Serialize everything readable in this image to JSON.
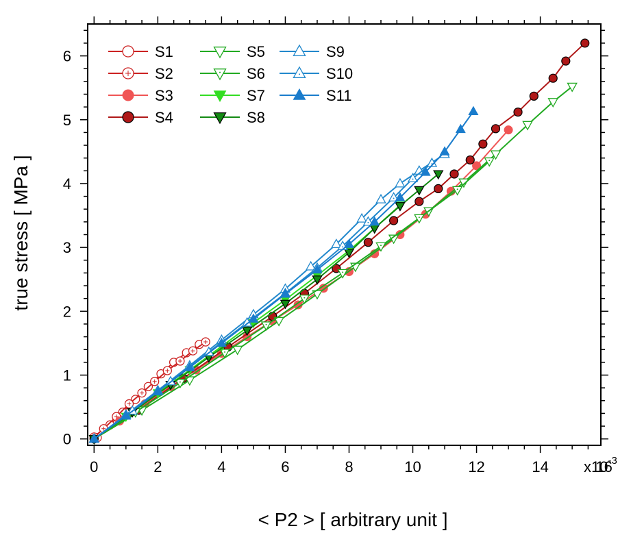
{
  "chart_data": {
    "type": "scatter",
    "title": "",
    "xlabel": "< P2 >   [ arbitrary unit ]",
    "ylabel": "true stress  [ MPa ]",
    "x_multiplier_label": "x10",
    "x_multiplier_exponent": "-3",
    "xlim": [
      -0.0002,
      0.0159
    ],
    "ylim": [
      -0.1,
      6.5
    ],
    "x_ticks": [
      0,
      0.002,
      0.004,
      0.006,
      0.008,
      0.01,
      0.012,
      0.014,
      0.016
    ],
    "x_tick_labels": [
      "0",
      "2",
      "4",
      "6",
      "8",
      "10",
      "12",
      "14",
      "16"
    ],
    "y_ticks": [
      0,
      1,
      2,
      3,
      4,
      5,
      6
    ],
    "y_tick_labels": [
      "0",
      "1",
      "2",
      "3",
      "4",
      "5",
      "6"
    ],
    "grid": false,
    "legend_position": "top-left",
    "series": [
      {
        "name": "S1",
        "color": "#cc2222",
        "marker": "circle-open",
        "x": [
          0.0001,
          0.0005,
          0.0009,
          0.0013,
          0.0017,
          0.0021,
          0.0025,
          0.0029,
          0.0033
        ],
        "y": [
          0.02,
          0.22,
          0.42,
          0.62,
          0.82,
          1.02,
          1.2,
          1.35,
          1.48
        ]
      },
      {
        "name": "S2",
        "color": "#cc2222",
        "marker": "circle-plus",
        "x": [
          0.0,
          0.0003,
          0.0007,
          0.0011,
          0.0015,
          0.0019,
          0.0023,
          0.0027,
          0.0031,
          0.0035
        ],
        "y": [
          0.03,
          0.16,
          0.35,
          0.55,
          0.72,
          0.9,
          1.07,
          1.22,
          1.38,
          1.52
        ]
      },
      {
        "name": "S3",
        "color": "#f05555",
        "marker": "circle-filled",
        "x": [
          0.0,
          0.0008,
          0.0016,
          0.0024,
          0.0032,
          0.004,
          0.0048,
          0.0056,
          0.0064,
          0.0072,
          0.008,
          0.0088,
          0.0096,
          0.0104,
          0.0112,
          0.012,
          0.013
        ],
        "y": [
          0.0,
          0.28,
          0.55,
          0.82,
          1.08,
          1.34,
          1.6,
          1.85,
          2.1,
          2.36,
          2.62,
          2.9,
          3.2,
          3.52,
          3.88,
          4.28,
          4.84
        ]
      },
      {
        "name": "S4",
        "color": "#b01818",
        "marker": "circle-filled-edged",
        "x": [
          0.0,
          0.0014,
          0.0028,
          0.0042,
          0.0056,
          0.0066,
          0.0076,
          0.0086,
          0.0094,
          0.0102,
          0.0108,
          0.0113,
          0.0118,
          0.0122,
          0.0126,
          0.0133,
          0.0138,
          0.0144,
          0.0148,
          0.0154
        ],
        "y": [
          0.0,
          0.45,
          0.95,
          1.44,
          1.92,
          2.28,
          2.67,
          3.08,
          3.42,
          3.72,
          3.92,
          4.15,
          4.37,
          4.62,
          4.86,
          5.12,
          5.37,
          5.65,
          5.92,
          6.2
        ]
      },
      {
        "name": "S5",
        "color": "#22aa22",
        "marker": "triangle-down-open",
        "x": [
          0.0,
          0.0015,
          0.003,
          0.0045,
          0.0058,
          0.007,
          0.0082,
          0.0094,
          0.0105,
          0.0116,
          0.0126,
          0.0136,
          0.0144,
          0.015
        ],
        "y": [
          0.0,
          0.45,
          0.92,
          1.4,
          1.85,
          2.27,
          2.7,
          3.14,
          3.57,
          4.02,
          4.46,
          4.92,
          5.28,
          5.52
        ]
      },
      {
        "name": "S6",
        "color": "#22aa22",
        "marker": "triangle-down-dot",
        "x": [
          0.0,
          0.0013,
          0.0027,
          0.0041,
          0.0054,
          0.0066,
          0.0078,
          0.009,
          0.0102,
          0.0114,
          0.0124
        ],
        "y": [
          0.0,
          0.42,
          0.88,
          1.35,
          1.78,
          2.2,
          2.6,
          3.02,
          3.46,
          3.9,
          4.35
        ]
      },
      {
        "name": "S7",
        "color": "#33dd22",
        "marker": "triangle-down-filled",
        "x": [
          0.0,
          0.001,
          0.002,
          0.003,
          0.004,
          0.005,
          0.006,
          0.007,
          0.008,
          0.0088,
          0.0096
        ],
        "y": [
          0.0,
          0.35,
          0.72,
          1.08,
          1.45,
          1.82,
          2.18,
          2.56,
          2.95,
          3.3,
          3.66
        ]
      },
      {
        "name": "S8",
        "color": "#138a13",
        "marker": "triangle-down-filled-edged",
        "x": [
          0.0,
          0.0012,
          0.0024,
          0.0036,
          0.0048,
          0.006,
          0.007,
          0.008,
          0.0088,
          0.0096,
          0.0102,
          0.0108
        ],
        "y": [
          0.0,
          0.42,
          0.85,
          1.28,
          1.7,
          2.12,
          2.5,
          2.92,
          3.3,
          3.65,
          3.9,
          4.15
        ]
      },
      {
        "name": "S9",
        "color": "#2288cc",
        "marker": "triangle-up-open",
        "x": [
          0.0,
          0.001,
          0.002,
          0.003,
          0.004,
          0.005,
          0.006,
          0.0068,
          0.0076,
          0.0084,
          0.009,
          0.0096,
          0.0102,
          0.011
        ],
        "y": [
          0.0,
          0.38,
          0.76,
          1.15,
          1.55,
          1.95,
          2.35,
          2.7,
          3.05,
          3.45,
          3.75,
          4.0,
          4.2,
          4.46
        ]
      },
      {
        "name": "S10",
        "color": "#2288cc",
        "marker": "triangle-up-dot",
        "x": [
          0.0,
          0.0012,
          0.0024,
          0.0036,
          0.0048,
          0.006,
          0.007,
          0.0078,
          0.0086,
          0.0094,
          0.01,
          0.0106
        ],
        "y": [
          0.0,
          0.44,
          0.9,
          1.36,
          1.82,
          2.28,
          2.68,
          3.02,
          3.4,
          3.78,
          4.08,
          4.32
        ]
      },
      {
        "name": "S11",
        "color": "#1a7ccc",
        "marker": "triangle-up-filled",
        "x": [
          0.0,
          0.001,
          0.002,
          0.003,
          0.004,
          0.005,
          0.006,
          0.007,
          0.008,
          0.0088,
          0.0096,
          0.0104,
          0.011,
          0.0115,
          0.0119
        ],
        "y": [
          0.0,
          0.36,
          0.74,
          1.12,
          1.5,
          1.88,
          2.27,
          2.65,
          3.05,
          3.4,
          3.78,
          4.18,
          4.5,
          4.85,
          5.13
        ]
      }
    ]
  }
}
